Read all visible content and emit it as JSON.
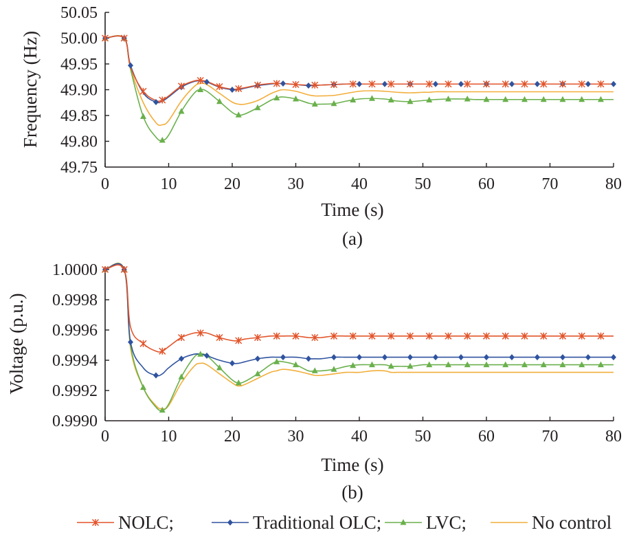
{
  "legend": [
    {
      "label": "NOLC;",
      "color": "#e2542a",
      "marker": "star-marker"
    },
    {
      "label": "Traditional OLC;",
      "color": "#2f539f",
      "marker": "diamond-marker"
    },
    {
      "label": "LVC;",
      "color": "#6ab04c",
      "marker": "triangle-marker"
    },
    {
      "label": "No control",
      "color": "#f2ae3a",
      "marker": "none"
    }
  ],
  "chart_data": [
    {
      "type": "line",
      "caption": "(a)",
      "xlabel": "Time (s)",
      "ylabel": "Frequency (Hz)",
      "xlim": [
        0,
        80
      ],
      "ylim": [
        49.75,
        50.05
      ],
      "xticks": [
        "0",
        "10",
        "20",
        "30",
        "40",
        "50",
        "60",
        "70",
        "80"
      ],
      "yticks": [
        "50.05",
        "50.00",
        "49.95",
        "49.90",
        "49.85",
        "49.80",
        "49.75"
      ],
      "grid": false,
      "x": [
        0,
        3,
        4,
        6,
        8,
        9,
        10,
        12,
        14,
        15,
        16,
        18,
        20,
        21,
        22,
        24,
        26,
        27,
        28,
        30,
        32,
        33,
        34,
        36,
        38,
        40,
        42,
        44,
        45,
        46,
        48,
        50,
        51,
        52,
        54,
        56,
        57,
        58,
        60,
        62,
        63,
        64,
        66,
        68,
        69,
        70,
        72,
        74,
        75,
        76,
        78,
        80
      ],
      "series": [
        {
          "name": "NOLC",
          "color": "#e2542a",
          "marker": "star",
          "values": [
            50.0,
            50.0,
            49.944,
            49.897,
            49.879,
            49.88,
            49.888,
            49.907,
            49.917,
            49.918,
            49.916,
            49.906,
            49.901,
            49.902,
            49.904,
            49.909,
            49.912,
            49.912,
            49.912,
            49.91,
            49.909,
            49.909,
            49.909,
            49.91,
            49.911,
            49.911,
            49.911,
            49.911,
            49.911,
            49.911,
            49.911,
            49.911,
            49.911,
            49.911,
            49.911,
            49.911,
            49.911,
            49.911,
            49.911,
            49.911,
            49.911,
            49.911,
            49.911,
            49.911,
            49.911,
            49.911,
            49.911,
            49.911,
            49.911,
            49.911,
            49.911,
            49.911
          ]
        },
        {
          "name": "Traditional OLC",
          "color": "#2f539f",
          "marker": "diamond",
          "values": [
            50.0,
            50.0,
            49.947,
            49.894,
            49.876,
            49.878,
            49.886,
            49.905,
            49.916,
            49.917,
            49.915,
            49.905,
            49.9,
            49.9,
            49.903,
            49.908,
            49.911,
            49.912,
            49.912,
            49.91,
            49.908,
            49.908,
            49.909,
            49.91,
            49.911,
            49.911,
            49.911,
            49.911,
            49.911,
            49.911,
            49.911,
            49.911,
            49.911,
            49.911,
            49.911,
            49.911,
            49.911,
            49.911,
            49.911,
            49.911,
            49.911,
            49.911,
            49.911,
            49.911,
            49.911,
            49.911,
            49.911,
            49.911,
            49.911,
            49.911,
            49.911,
            49.911
          ]
        },
        {
          "name": "LVC",
          "color": "#6ab04c",
          "marker": "triangle",
          "values": [
            50.0,
            50.0,
            49.94,
            49.848,
            49.808,
            49.802,
            49.812,
            49.858,
            49.893,
            49.9,
            49.897,
            49.877,
            49.856,
            49.851,
            49.853,
            49.865,
            49.879,
            49.884,
            49.886,
            49.882,
            49.874,
            49.872,
            49.872,
            49.873,
            49.878,
            49.882,
            49.883,
            49.882,
            49.88,
            49.878,
            49.877,
            49.879,
            49.88,
            49.881,
            49.882,
            49.882,
            49.882,
            49.881,
            49.881,
            49.881,
            49.881,
            49.881,
            49.881,
            49.881,
            49.881,
            49.881,
            49.881,
            49.881,
            49.881,
            49.881,
            49.881,
            49.881
          ]
        },
        {
          "name": "No control",
          "color": "#f2ae3a",
          "marker": "none",
          "values": [
            50.0,
            50.0,
            49.942,
            49.875,
            49.836,
            49.832,
            49.84,
            49.878,
            49.906,
            49.912,
            49.91,
            49.893,
            49.876,
            49.872,
            49.872,
            49.879,
            49.892,
            49.897,
            49.9,
            49.897,
            49.89,
            49.888,
            49.888,
            49.889,
            49.893,
            49.897,
            49.898,
            49.897,
            49.896,
            49.895,
            49.894,
            49.895,
            49.895,
            49.896,
            49.896,
            49.896,
            49.896,
            49.896,
            49.896,
            49.896,
            49.896,
            49.896,
            49.896,
            49.896,
            49.896,
            49.896,
            49.896,
            49.896,
            49.896,
            49.896,
            49.896,
            49.896
          ]
        }
      ]
    },
    {
      "type": "line",
      "caption": "(b)",
      "xlabel": "Time (s)",
      "ylabel": "Voltage (p.u.)",
      "xlim": [
        0,
        80
      ],
      "ylim": [
        0.999,
        1.0
      ],
      "xticks": [
        "0",
        "10",
        "20",
        "30",
        "40",
        "50",
        "60",
        "70",
        "80"
      ],
      "yticks": [
        "1.0000",
        "0.9998",
        "0.9996",
        "0.9994",
        "0.9992",
        "0.9990"
      ],
      "grid": false,
      "x": [
        0,
        3,
        4,
        6,
        8,
        9,
        10,
        12,
        14,
        15,
        16,
        18,
        20,
        21,
        22,
        24,
        26,
        27,
        28,
        30,
        32,
        33,
        34,
        36,
        38,
        40,
        42,
        44,
        45,
        46,
        48,
        50,
        51,
        52,
        54,
        56,
        57,
        58,
        60,
        62,
        63,
        64,
        66,
        68,
        69,
        70,
        72,
        74,
        75,
        76,
        78,
        80
      ],
      "series": [
        {
          "name": "NOLC",
          "color": "#e2542a",
          "marker": "star",
          "values": [
            1.0,
            1.0,
            0.99962,
            0.99951,
            0.99946,
            0.99946,
            0.99949,
            0.99955,
            0.99958,
            0.99958,
            0.99958,
            0.99955,
            0.99953,
            0.99953,
            0.99954,
            0.99955,
            0.99956,
            0.99956,
            0.99956,
            0.99956,
            0.99955,
            0.99955,
            0.99955,
            0.99956,
            0.99956,
            0.99956,
            0.99956,
            0.99956,
            0.99956,
            0.99956,
            0.99956,
            0.99956,
            0.99956,
            0.99956,
            0.99956,
            0.99956,
            0.99956,
            0.99956,
            0.99956,
            0.99956,
            0.99956,
            0.99956,
            0.99956,
            0.99956,
            0.99956,
            0.99956,
            0.99956,
            0.99956,
            0.99956,
            0.99956,
            0.99956,
            0.99956
          ]
        },
        {
          "name": "Traditional OLC",
          "color": "#2f539f",
          "marker": "diamond",
          "values": [
            1.0,
            1.0,
            0.99952,
            0.99935,
            0.9993,
            0.99931,
            0.99935,
            0.99941,
            0.99944,
            0.99944,
            0.99943,
            0.9994,
            0.99938,
            0.99938,
            0.99939,
            0.99941,
            0.99942,
            0.99942,
            0.99942,
            0.99942,
            0.99941,
            0.99941,
            0.99941,
            0.99942,
            0.99942,
            0.99942,
            0.99942,
            0.99942,
            0.99942,
            0.99942,
            0.99942,
            0.99942,
            0.99942,
            0.99942,
            0.99942,
            0.99942,
            0.99942,
            0.99942,
            0.99942,
            0.99942,
            0.99942,
            0.99942,
            0.99942,
            0.99942,
            0.99942,
            0.99942,
            0.99942,
            0.99942,
            0.99942,
            0.99942,
            0.99942,
            0.99942
          ]
        },
        {
          "name": "LVC",
          "color": "#6ab04c",
          "marker": "triangle",
          "values": [
            1.0,
            1.0,
            0.9995,
            0.99922,
            0.99909,
            0.99907,
            0.99911,
            0.99929,
            0.99942,
            0.99944,
            0.99943,
            0.99935,
            0.99927,
            0.99925,
            0.99926,
            0.99931,
            0.99937,
            0.99939,
            0.99939,
            0.99937,
            0.99933,
            0.99933,
            0.99933,
            0.99934,
            0.99936,
            0.99937,
            0.99937,
            0.99937,
            0.99936,
            0.99936,
            0.99936,
            0.99937,
            0.99937,
            0.99937,
            0.99937,
            0.99937,
            0.99937,
            0.99937,
            0.99937,
            0.99937,
            0.99937,
            0.99937,
            0.99937,
            0.99937,
            0.99937,
            0.99937,
            0.99937,
            0.99937,
            0.99937,
            0.99937,
            0.99937,
            0.99937
          ]
        },
        {
          "name": "No control",
          "color": "#f2ae3a",
          "marker": "none",
          "values": [
            1.0,
            1.0,
            0.99948,
            0.99922,
            0.9991,
            0.99908,
            0.9991,
            0.99925,
            0.99936,
            0.99938,
            0.99937,
            0.99931,
            0.99925,
            0.99923,
            0.99924,
            0.99928,
            0.99932,
            0.99933,
            0.99934,
            0.99933,
            0.99931,
            0.9993,
            0.9993,
            0.99931,
            0.99932,
            0.99932,
            0.99933,
            0.99933,
            0.99932,
            0.99932,
            0.99932,
            0.99932,
            0.99932,
            0.99932,
            0.99932,
            0.99932,
            0.99932,
            0.99932,
            0.99932,
            0.99932,
            0.99932,
            0.99932,
            0.99932,
            0.99932,
            0.99932,
            0.99932,
            0.99932,
            0.99932,
            0.99932,
            0.99932,
            0.99932,
            0.99932
          ]
        }
      ]
    }
  ]
}
